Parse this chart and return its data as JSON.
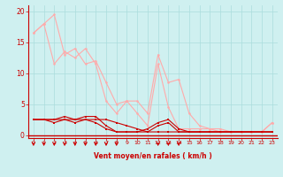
{
  "background_color": "#cff0f0",
  "grid_color": "#aadddd",
  "line_color_dark": "#cc0000",
  "line_color_light": "#ffaaaa",
  "arrow_color": "#cc0000",
  "xlabel": "Vent moyen/en rafales ( km/h )",
  "xlabel_color": "#cc0000",
  "tick_label_color": "#cc0000",
  "ylim": [
    -0.5,
    21
  ],
  "xlim": [
    -0.5,
    23.5
  ],
  "yticks": [
    0,
    5,
    10,
    15,
    20
  ],
  "xticks": [
    0,
    1,
    2,
    3,
    4,
    5,
    6,
    7,
    8,
    9,
    10,
    11,
    12,
    13,
    14,
    15,
    16,
    17,
    18,
    19,
    20,
    21,
    22,
    23
  ],
  "arrow_positions_x": [
    0,
    1,
    2,
    3,
    4,
    5,
    6,
    7,
    8,
    12,
    13,
    14
  ],
  "line1_x": [
    0,
    1,
    2,
    3,
    4,
    5,
    6,
    7,
    8,
    9,
    10,
    11,
    12,
    13,
    14,
    15,
    16,
    17,
    18,
    19,
    20,
    21,
    22,
    23
  ],
  "line1_y": [
    16.5,
    18.0,
    19.5,
    13.0,
    14.0,
    11.5,
    12.0,
    8.5,
    5.0,
    5.5,
    5.5,
    3.5,
    13.0,
    8.5,
    9.0,
    3.5,
    1.5,
    1.0,
    1.0,
    0.5,
    0.5,
    0.5,
    0.5,
    2.0
  ],
  "line2_x": [
    0,
    1,
    2,
    3,
    4,
    5,
    6,
    7,
    8,
    9,
    10,
    11,
    12,
    13,
    14,
    15,
    16,
    17,
    18,
    19,
    20,
    21,
    22,
    23
  ],
  "line2_y": [
    16.5,
    18.0,
    11.5,
    13.5,
    12.5,
    14.0,
    11.5,
    5.5,
    3.5,
    5.5,
    3.5,
    1.5,
    11.5,
    4.5,
    1.0,
    1.0,
    1.0,
    1.0,
    0.5,
    0.5,
    0.5,
    0.5,
    0.5,
    2.0
  ],
  "line3_x": [
    0,
    1,
    2,
    3,
    4,
    5,
    6,
    7,
    8,
    9,
    10,
    11,
    12,
    13,
    14,
    15,
    16,
    17,
    18,
    19,
    20,
    21,
    22,
    23
  ],
  "line3_y": [
    2.5,
    2.5,
    2.5,
    3.0,
    2.5,
    3.0,
    3.0,
    1.5,
    0.5,
    0.5,
    0.5,
    1.0,
    2.0,
    2.5,
    1.0,
    0.5,
    0.5,
    0.5,
    0.5,
    0.5,
    0.5,
    0.5,
    0.5,
    0.5
  ],
  "line4_x": [
    0,
    1,
    2,
    3,
    4,
    5,
    6,
    7,
    8,
    9,
    10,
    11,
    12,
    13,
    14,
    15,
    16,
    17,
    18,
    19,
    20,
    21,
    22,
    23
  ],
  "line4_y": [
    2.5,
    2.5,
    2.0,
    2.5,
    2.0,
    2.5,
    2.0,
    1.0,
    0.5,
    0.5,
    0.5,
    0.5,
    1.5,
    2.0,
    0.5,
    0.5,
    0.5,
    0.5,
    0.5,
    0.5,
    0.5,
    0.5,
    0.5,
    0.5
  ],
  "line5_x": [
    0,
    1,
    2,
    3,
    4,
    5,
    6,
    7,
    8,
    9,
    10,
    11,
    12,
    13,
    14,
    15,
    16,
    17,
    18,
    19,
    20,
    21,
    22,
    23
  ],
  "line5_y": [
    2.5,
    2.5,
    2.5,
    2.5,
    2.5,
    2.5,
    2.5,
    2.5,
    2.0,
    1.5,
    1.0,
    0.5,
    0.5,
    0.5,
    0.5,
    0.5,
    0.5,
    0.5,
    0.5,
    0.5,
    0.5,
    0.5,
    0.5,
    0.5
  ]
}
